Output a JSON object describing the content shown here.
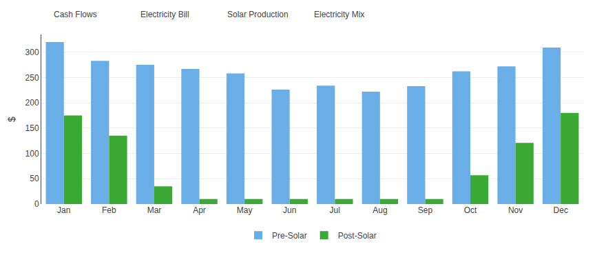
{
  "chart_data": {
    "type": "bar",
    "annotations": [
      "Cash Flows",
      "Electricity Bill",
      "Solar Production",
      "Electricity Mix"
    ],
    "ylabel": "$",
    "categories": [
      "Jan",
      "Feb",
      "Mar",
      "Apr",
      "May",
      "Jun",
      "Jul",
      "Aug",
      "Sep",
      "Oct",
      "Nov",
      "Dec"
    ],
    "series": [
      {
        "name": "Pre-Solar",
        "color": "#6aaee8",
        "values": [
          320,
          283,
          275,
          267,
          258,
          226,
          234,
          222,
          233,
          262,
          272,
          309
        ]
      },
      {
        "name": "Post-Solar",
        "color": "#3aaa35",
        "values": [
          175,
          135,
          35,
          10,
          10,
          10,
          10,
          10,
          10,
          57,
          121,
          180
        ]
      }
    ],
    "ylim": [
      0,
      335
    ],
    "yticks": [
      0,
      50,
      100,
      150,
      200,
      250,
      300
    ],
    "grid": true,
    "legend": "bottom"
  }
}
